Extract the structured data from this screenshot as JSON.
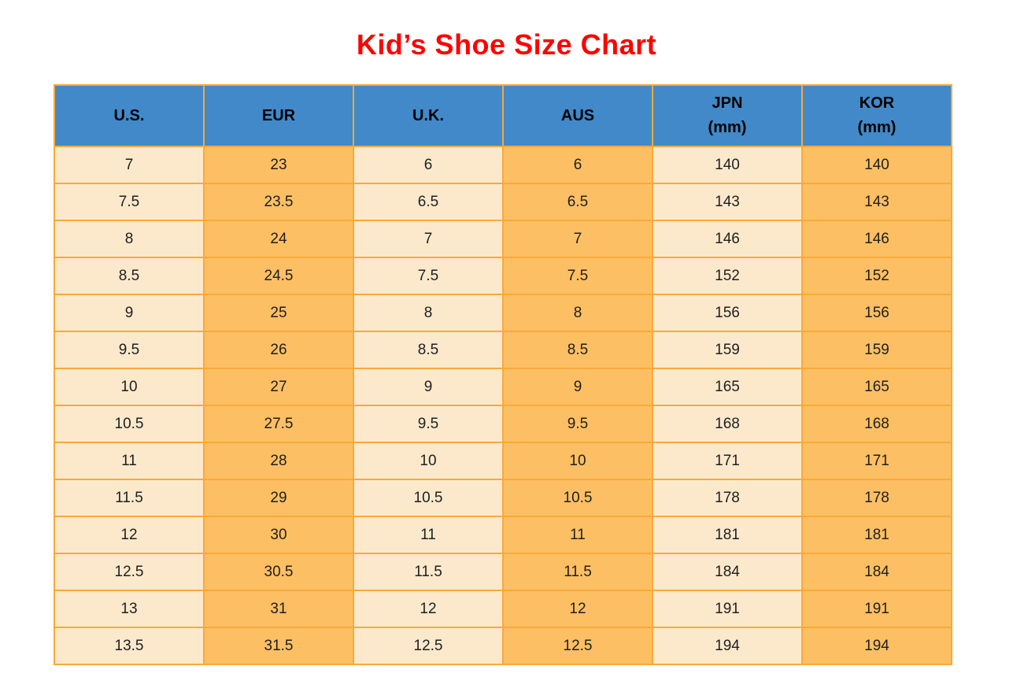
{
  "page": {
    "title": "Kid’s Shoe Size Chart"
  },
  "colors": {
    "title": "#FF0000",
    "header_bg": "#4189C9",
    "cell_light": "#FCE9CC",
    "cell_orange": "#FDBF63",
    "border": "#F9A939",
    "cell_text": "#1F1F1F"
  },
  "table": {
    "columns": [
      {
        "id": "us",
        "label": "U.S.",
        "sublabel": ""
      },
      {
        "id": "eur",
        "label": "EUR",
        "sublabel": ""
      },
      {
        "id": "uk",
        "label": "U.K.",
        "sublabel": ""
      },
      {
        "id": "aus",
        "label": "AUS",
        "sublabel": ""
      },
      {
        "id": "jpn",
        "label": "JPN",
        "sublabel": "(mm)"
      },
      {
        "id": "kor",
        "label": "KOR",
        "sublabel": "(mm)"
      }
    ],
    "rows": [
      [
        "7",
        "23",
        "6",
        "6",
        "140",
        "140"
      ],
      [
        "7.5",
        "23.5",
        "6.5",
        "6.5",
        "143",
        "143"
      ],
      [
        "8",
        "24",
        "7",
        "7",
        "146",
        "146"
      ],
      [
        "8.5",
        "24.5",
        "7.5",
        "7.5",
        "152",
        "152"
      ],
      [
        "9",
        "25",
        "8",
        "8",
        "156",
        "156"
      ],
      [
        "9.5",
        "26",
        "8.5",
        "8.5",
        "159",
        "159"
      ],
      [
        "10",
        "27",
        "9",
        "9",
        "165",
        "165"
      ],
      [
        "10.5",
        "27.5",
        "9.5",
        "9.5",
        "168",
        "168"
      ],
      [
        "11",
        "28",
        "10",
        "10",
        "171",
        "171"
      ],
      [
        "11.5",
        "29",
        "10.5",
        "10.5",
        "178",
        "178"
      ],
      [
        "12",
        "30",
        "11",
        "11",
        "181",
        "181"
      ],
      [
        "12.5",
        "30.5",
        "11.5",
        "11.5",
        "184",
        "184"
      ],
      [
        "13",
        "31",
        "12",
        "12",
        "191",
        "191"
      ],
      [
        "13.5",
        "31.5",
        "12.5",
        "12.5",
        "194",
        "194"
      ]
    ]
  },
  "chart_data": {
    "type": "table",
    "title": "Kid’s Shoe Size Chart",
    "columns": [
      "U.S.",
      "EUR",
      "U.K.",
      "AUS",
      "JPN (mm)",
      "KOR (mm)"
    ],
    "rows": [
      [
        7,
        23,
        6,
        6,
        140,
        140
      ],
      [
        7.5,
        23.5,
        6.5,
        6.5,
        143,
        143
      ],
      [
        8,
        24,
        7,
        7,
        146,
        146
      ],
      [
        8.5,
        24.5,
        7.5,
        7.5,
        152,
        152
      ],
      [
        9,
        25,
        8,
        8,
        156,
        156
      ],
      [
        9.5,
        26,
        8.5,
        8.5,
        159,
        159
      ],
      [
        10,
        27,
        9,
        9,
        165,
        165
      ],
      [
        10.5,
        27.5,
        9.5,
        9.5,
        168,
        168
      ],
      [
        11,
        28,
        10,
        10,
        171,
        171
      ],
      [
        11.5,
        29,
        10.5,
        10.5,
        178,
        178
      ],
      [
        12,
        30,
        11,
        11,
        181,
        181
      ],
      [
        12.5,
        30.5,
        11.5,
        11.5,
        184,
        184
      ],
      [
        13,
        31,
        12,
        12,
        191,
        191
      ],
      [
        13.5,
        31.5,
        12.5,
        12.5,
        194,
        194
      ]
    ],
    "layout_hints": {
      "header_background": "#4189C9",
      "column_fill_alternation": [
        "#FCE9CC",
        "#FDBF63"
      ],
      "grid": "on",
      "title_position": "top-center"
    }
  }
}
